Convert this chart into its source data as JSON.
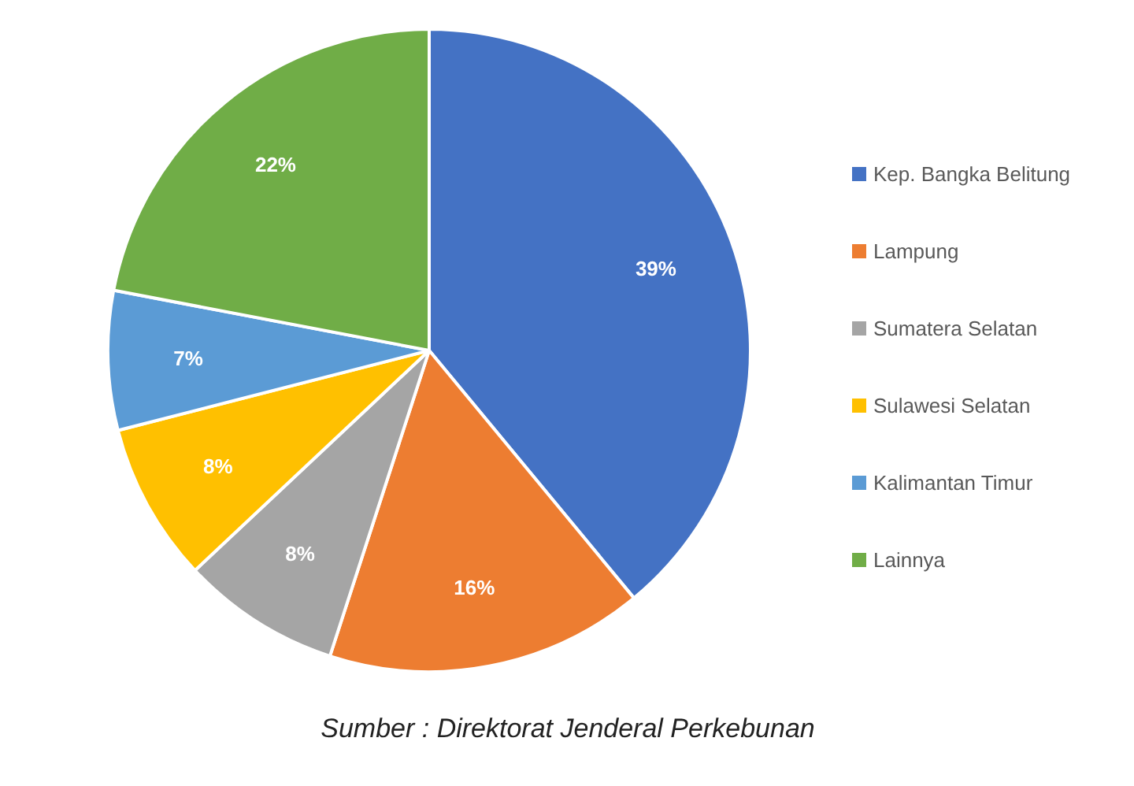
{
  "chart_data": {
    "type": "pie",
    "categories": [
      "Kep. Bangka Belitung",
      "Lampung",
      "Sumatera Selatan",
      "Sulawesi Selatan",
      "Kalimantan Timur",
      "Lainnya"
    ],
    "values": [
      39,
      16,
      8,
      8,
      7,
      22
    ],
    "value_labels": [
      "39%",
      "16%",
      "8%",
      "8%",
      "7%",
      "22%"
    ],
    "colors": [
      "#4472c4",
      "#ed7d31",
      "#a5a5a5",
      "#ffc000",
      "#5b9bd5",
      "#70ad47"
    ],
    "legend": "right",
    "annotations": [
      "Sumber : Direktorat Jenderal Perkebunan"
    ]
  }
}
